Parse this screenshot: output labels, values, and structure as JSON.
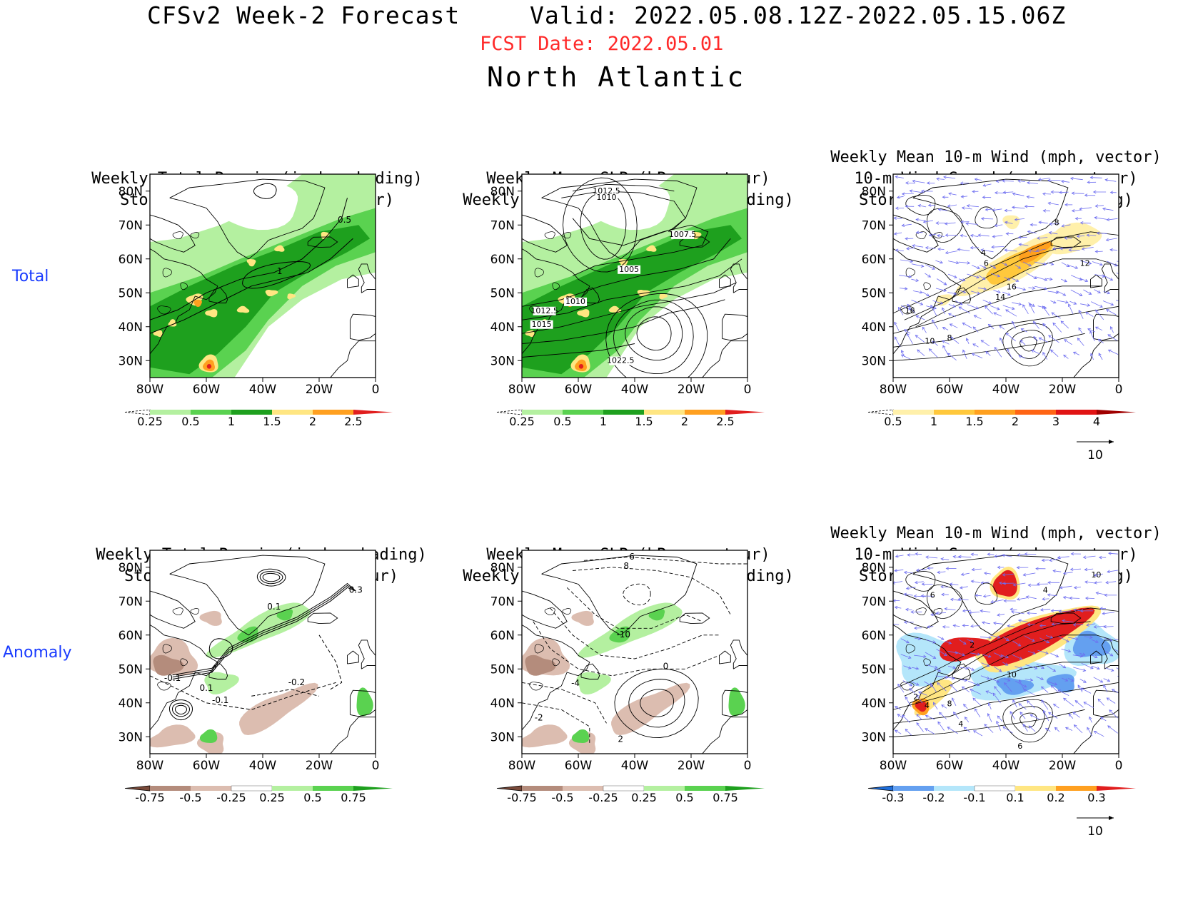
{
  "header": {
    "title": "CFSv2 Week-2 Forecast",
    "valid": "Valid: 2022.05.08.12Z-2022.05.15.06Z",
    "fcst_date": "FCST Date: 2022.05.01",
    "region": "North Atlantic"
  },
  "row_labels": {
    "total": "Total",
    "anomaly": "Anomaly"
  },
  "axes": {
    "lat_ticks": [
      "80N",
      "70N",
      "60N",
      "50N",
      "40N",
      "30N"
    ],
    "lon_ticks": [
      "80W",
      "60W",
      "40W",
      "20W",
      "0"
    ]
  },
  "panels": {
    "total_precip_track": {
      "title_lines": [
        "Weekly Total Precip (inch, shading)",
        "Storm Track Density (contour)"
      ],
      "contour_labels": [
        "0.5",
        "1"
      ],
      "colorbar": [
        "0.25",
        "0.5",
        "1",
        "1.5",
        "2",
        "2.5"
      ]
    },
    "total_slp_precip": {
      "title_lines": [
        "Weekly Mean SLP (hPa, contour)",
        "Weekly Total Precip (inch, shading)"
      ],
      "contour_labels": [
        "1012.5",
        "1010",
        "1007.5",
        "1005",
        "1010",
        "1012.5",
        "1015",
        "1022.5"
      ],
      "colorbar": [
        "0.25",
        "0.5",
        "1",
        "1.5",
        "2",
        "2.5"
      ]
    },
    "total_wind": {
      "title_lines": [
        "Weekly Mean 10-m Wind (mph, vector)",
        "10-m Wind Speed (mph, contour)",
        "Storm Track Density (shading)"
      ],
      "contour_labels": [
        "8",
        "4",
        "6",
        "12",
        "16",
        "14",
        "16",
        "10",
        "8"
      ],
      "colorbar": [
        "0.5",
        "1",
        "1.5",
        "2",
        "3",
        "4"
      ],
      "vector_ref": "10"
    },
    "anom_precip_track": {
      "title_lines": [
        "Weekly Total Precip (inch, shading)",
        "Storm Track Density (contour)"
      ],
      "contour_labels": [
        "0.3",
        "0.1",
        "-0.1",
        "-0.2",
        "0.1",
        "-0.1"
      ],
      "colorbar": [
        "-0.75",
        "-0.5",
        "-0.25",
        "0.25",
        "0.5",
        "0.75"
      ]
    },
    "anom_slp_precip": {
      "title_lines": [
        "Weekly Mean SLP (hPa, contour)",
        "Weekly Total Precip (inch, shading)"
      ],
      "contour_labels": [
        "6",
        "8",
        "-10",
        "0",
        "-4",
        "-2",
        "2"
      ],
      "colorbar": [
        "-0.75",
        "-0.5",
        "-0.25",
        "0.25",
        "0.5",
        "0.75"
      ]
    },
    "anom_wind": {
      "title_lines": [
        "Weekly Mean 10-m Wind (mph, vector)",
        "10-m Wind Speed (mph, contour)",
        "Storm Track Density (shading)"
      ],
      "contour_labels": [
        "10",
        "4",
        "6",
        "2",
        "10",
        "2",
        "4",
        "8",
        "4",
        "6"
      ],
      "colorbar": [
        "-0.3",
        "-0.2",
        "-0.1",
        "0.1",
        "0.2",
        "0.3"
      ],
      "vector_ref": "10"
    }
  },
  "colors": {
    "precip_scale": [
      "#ffffff",
      "#b4f0a0",
      "#5ad250",
      "#1ea01e",
      "#ffe682",
      "#ffa020",
      "#e11e1e"
    ],
    "track_scale": [
      "#ffffff",
      "#fff0aa",
      "#ffc83c",
      "#ffa01e",
      "#ff6414",
      "#e11414",
      "#a00000"
    ],
    "anom_precip_scale": [
      "#7a4a3a",
      "#b48c7c",
      "#dcbdb0",
      "#ffffff",
      "#b4f0a0",
      "#5ad250",
      "#1ea01e"
    ],
    "anom_track_scale": [
      "#1e6edc",
      "#64a0f0",
      "#b4e6fa",
      "#ffffff",
      "#ffe682",
      "#ffa020",
      "#e11e1e"
    ],
    "vectors": "#6e6ef0",
    "fcst_date": "#ff2a2a",
    "row_label": "#1a3cff"
  }
}
